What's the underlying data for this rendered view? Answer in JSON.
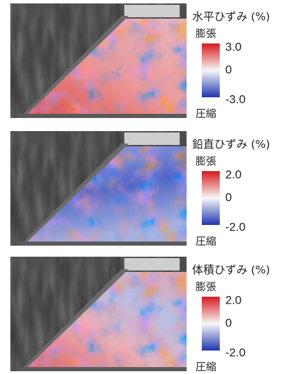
{
  "panels": [
    {
      "title": "水平ひずみ (%)",
      "top_label": "膨張",
      "bottom_label": "圧縮",
      "range": [
        -3,
        3
      ],
      "ticks": [
        {
          "value": 3,
          "label": "3.0"
        },
        0,
        {
          "value": -3,
          "label": "-3.0"
        }
      ]
    },
    {
      "title": "鉛直ひずみ (%)",
      "top_label": "膨張",
      "bottom_label": "圧縮",
      "range": [
        -2,
        2
      ],
      "ticks": [
        {
          "value": 2,
          "label": "2.0"
        },
        0,
        {
          "value": -2,
          "label": "-2.0"
        }
      ]
    },
    {
      "title": "体積ひずみ (%)",
      "top_label": "膨張",
      "bottom_label": "圧縮",
      "range": [
        -2,
        2
      ],
      "ticks": [
        {
          "value": 2,
          "label": "2.0"
        },
        0,
        {
          "value": -2,
          "label": "-2.0"
        }
      ]
    }
  ]
}
